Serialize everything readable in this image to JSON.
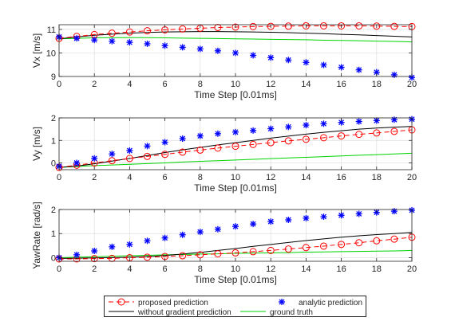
{
  "chart_data": [
    {
      "type": "line",
      "title": "",
      "xlabel": "Time Step [0.01ms]",
      "ylabel": "Vx [m/s]",
      "xlim": [
        0,
        20
      ],
      "ylim": [
        9,
        11.2
      ],
      "xticks": [
        0,
        2,
        4,
        6,
        8,
        10,
        12,
        14,
        16,
        18,
        20
      ],
      "yticks": [
        9,
        10,
        11
      ],
      "grid": true,
      "x": [
        0,
        1,
        2,
        3,
        4,
        5,
        6,
        7,
        8,
        9,
        10,
        11,
        12,
        13,
        14,
        15,
        16,
        17,
        18,
        19,
        20
      ],
      "series": [
        {
          "name": "proposed prediction",
          "color": "#ff0000",
          "marker": "circle",
          "line": "dashed",
          "values": [
            10.62,
            10.7,
            10.78,
            10.84,
            10.89,
            10.94,
            10.98,
            11.02,
            11.05,
            11.08,
            11.1,
            11.12,
            11.13,
            11.14,
            11.15,
            11.15,
            11.15,
            11.15,
            11.14,
            11.13,
            11.12
          ]
        },
        {
          "name": "analytic prediction",
          "color": "#0000ff",
          "marker": "star",
          "line": "none",
          "values": [
            10.68,
            10.62,
            10.55,
            10.5,
            10.45,
            10.39,
            10.31,
            10.24,
            10.17,
            10.09,
            10.0,
            9.9,
            9.8,
            9.7,
            9.6,
            9.49,
            9.39,
            9.28,
            9.18,
            9.07,
            8.96
          ]
        },
        {
          "name": "without gradient prediction",
          "color": "#000000",
          "marker": "none",
          "line": "solid",
          "values": [
            10.6,
            10.68,
            10.75,
            10.8,
            10.84,
            10.87,
            10.89,
            10.9,
            10.91,
            10.91,
            10.9,
            10.89,
            10.88,
            10.86,
            10.84,
            10.82,
            10.79,
            10.77,
            10.74,
            10.71,
            10.68
          ]
        },
        {
          "name": "ground truth",
          "color": "#00d400",
          "marker": "none",
          "line": "solid",
          "values": [
            10.6,
            10.62,
            10.64,
            10.65,
            10.65,
            10.65,
            10.64,
            10.63,
            10.62,
            10.61,
            10.6,
            10.59,
            10.58,
            10.57,
            10.56,
            10.54,
            10.53,
            10.52,
            10.5,
            10.49,
            10.47
          ]
        }
      ]
    },
    {
      "type": "line",
      "title": "",
      "xlabel": "Time Step [0.01ms]",
      "ylabel": "Vy [m/s]",
      "xlim": [
        0,
        20
      ],
      "ylim": [
        -0.3,
        2
      ],
      "xticks": [
        0,
        2,
        4,
        6,
        8,
        10,
        12,
        14,
        16,
        18,
        20
      ],
      "yticks": [
        0,
        1,
        2
      ],
      "grid": true,
      "x": [
        0,
        1,
        2,
        3,
        4,
        5,
        6,
        7,
        8,
        9,
        10,
        11,
        12,
        13,
        14,
        15,
        16,
        17,
        18,
        19,
        20
      ],
      "series": [
        {
          "name": "proposed prediction",
          "color": "#ff0000",
          "marker": "circle",
          "line": "dashed",
          "values": [
            -0.2,
            -0.1,
            0.0,
            0.1,
            0.2,
            0.29,
            0.38,
            0.48,
            0.57,
            0.66,
            0.74,
            0.82,
            0.9,
            0.98,
            1.05,
            1.12,
            1.2,
            1.27,
            1.33,
            1.4,
            1.47
          ]
        },
        {
          "name": "analytic prediction",
          "color": "#0000ff",
          "marker": "star",
          "line": "none",
          "values": [
            -0.15,
            0.0,
            0.2,
            0.4,
            0.55,
            0.75,
            0.92,
            1.08,
            1.2,
            1.3,
            1.37,
            1.44,
            1.52,
            1.6,
            1.68,
            1.74,
            1.8,
            1.84,
            1.88,
            1.92,
            1.94
          ]
        },
        {
          "name": "without gradient prediction",
          "color": "#000000",
          "marker": "none",
          "line": "solid",
          "values": [
            -0.2,
            -0.14,
            -0.04,
            0.08,
            0.2,
            0.33,
            0.46,
            0.58,
            0.69,
            0.8,
            0.9,
            1.0,
            1.1,
            1.19,
            1.28,
            1.36,
            1.43,
            1.5,
            1.55,
            1.59,
            1.62
          ]
        },
        {
          "name": "ground truth",
          "color": "#00d400",
          "marker": "none",
          "line": "solid",
          "values": [
            -0.2,
            -0.16,
            -0.12,
            -0.09,
            -0.06,
            -0.03,
            0.0,
            0.04,
            0.07,
            0.1,
            0.13,
            0.16,
            0.19,
            0.22,
            0.25,
            0.28,
            0.31,
            0.34,
            0.37,
            0.4,
            0.43
          ]
        }
      ]
    },
    {
      "type": "line",
      "title": "",
      "xlabel": "Time Step [0.01ms]",
      "ylabel": "YawRate [rad/s]",
      "xlim": [
        0,
        20
      ],
      "ylim": [
        -0.15,
        2
      ],
      "xticks": [
        0,
        2,
        4,
        6,
        8,
        10,
        12,
        14,
        16,
        18,
        20
      ],
      "yticks": [
        0,
        1,
        2
      ],
      "grid": true,
      "x": [
        0,
        1,
        2,
        3,
        4,
        5,
        6,
        7,
        8,
        9,
        10,
        11,
        12,
        13,
        14,
        15,
        16,
        17,
        18,
        19,
        20
      ],
      "series": [
        {
          "name": "proposed prediction",
          "color": "#ff0000",
          "marker": "circle",
          "line": "dashed",
          "values": [
            -0.05,
            -0.05,
            -0.04,
            -0.03,
            0.0,
            0.02,
            0.05,
            0.08,
            0.12,
            0.16,
            0.2,
            0.25,
            0.3,
            0.36,
            0.42,
            0.48,
            0.55,
            0.62,
            0.7,
            0.77,
            0.85
          ]
        },
        {
          "name": "analytic prediction",
          "color": "#0000ff",
          "marker": "star",
          "line": "none",
          "values": [
            0.0,
            0.12,
            0.28,
            0.45,
            0.55,
            0.7,
            0.82,
            0.95,
            1.07,
            1.18,
            1.3,
            1.4,
            1.5,
            1.57,
            1.64,
            1.7,
            1.76,
            1.82,
            1.88,
            1.93,
            1.97
          ]
        },
        {
          "name": "without gradient prediction",
          "color": "#000000",
          "marker": "none",
          "line": "solid",
          "values": [
            -0.03,
            -0.02,
            -0.01,
            0.0,
            0.02,
            0.05,
            0.09,
            0.15,
            0.22,
            0.3,
            0.38,
            0.47,
            0.55,
            0.63,
            0.71,
            0.78,
            0.85,
            0.91,
            0.96,
            1.0,
            1.05
          ]
        },
        {
          "name": "ground truth",
          "color": "#00d400",
          "marker": "none",
          "line": "solid",
          "values": [
            0.0,
            0.02,
            0.04,
            0.06,
            0.08,
            0.1,
            0.12,
            0.13,
            0.15,
            0.16,
            0.18,
            0.19,
            0.2,
            0.21,
            0.23,
            0.24,
            0.25,
            0.26,
            0.27,
            0.28,
            0.3
          ]
        }
      ]
    }
  ],
  "legend": {
    "placement": "bottom-center",
    "entries": [
      {
        "label": "proposed prediction",
        "color": "#ff0000",
        "marker": "circle",
        "line": "dashed"
      },
      {
        "label": "analytic prediction",
        "color": "#0000ff",
        "marker": "star",
        "line": "none"
      },
      {
        "label": "without gradient prediction",
        "color": "#000000",
        "marker": "none",
        "line": "solid"
      },
      {
        "label": "ground truth",
        "color": "#00d400",
        "marker": "none",
        "line": "solid"
      }
    ]
  }
}
